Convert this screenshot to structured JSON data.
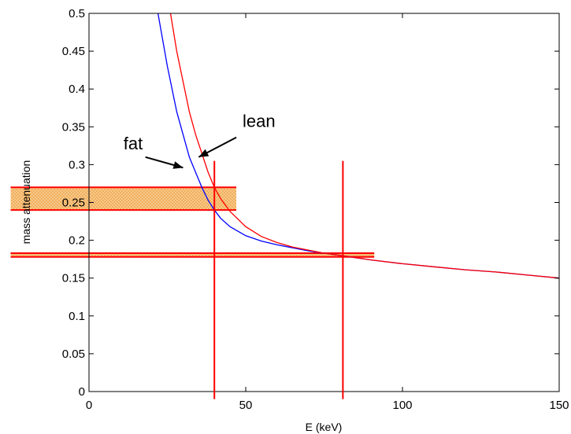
{
  "chart_data": {
    "type": "line",
    "title": "",
    "xlabel": "E (keV)",
    "ylabel": "mass attenuation",
    "xlim": [
      0,
      150
    ],
    "ylim": [
      0,
      0.5
    ],
    "grid": false,
    "x_ticks": [
      0,
      50,
      100,
      150
    ],
    "y_ticks": [
      0,
      0.05,
      0.1,
      0.15,
      0.2,
      0.25,
      0.3,
      0.35,
      0.4,
      0.45,
      0.5
    ],
    "series": [
      {
        "color": "#0000ff",
        "x": [
          22,
          25,
          28,
          30,
          32,
          34,
          36,
          38,
          40,
          42,
          45,
          50,
          55,
          60,
          65,
          70,
          75,
          80,
          85,
          90,
          100,
          110,
          120,
          130,
          140,
          150
        ],
        "values": [
          0.5,
          0.43,
          0.37,
          0.34,
          0.31,
          0.29,
          0.27,
          0.253,
          0.24,
          0.229,
          0.218,
          0.206,
          0.199,
          0.194,
          0.19,
          0.186,
          0.183,
          0.18,
          0.177,
          0.174,
          0.169,
          0.165,
          0.161,
          0.158,
          0.154,
          0.15
        ]
      },
      {
        "color": "#ff0000",
        "x": [
          26,
          28,
          30,
          32,
          34,
          36,
          38,
          40,
          42,
          45,
          50,
          55,
          60,
          65,
          70,
          75,
          80,
          85,
          90,
          100,
          110,
          120,
          130,
          140,
          150
        ],
        "values": [
          0.5,
          0.45,
          0.41,
          0.37,
          0.34,
          0.315,
          0.29,
          0.27,
          0.255,
          0.238,
          0.218,
          0.205,
          0.197,
          0.191,
          0.187,
          0.183,
          0.18,
          0.177,
          0.174,
          0.169,
          0.165,
          0.161,
          0.158,
          0.154,
          0.15
        ]
      }
    ],
    "vertical_markers": [
      {
        "x": 40,
        "y_range": [
          -0.01,
          0.305
        ],
        "color": "#ff0000"
      },
      {
        "x": 81,
        "y_range": [
          -0.01,
          0.305
        ],
        "color": "#ff0000"
      }
    ],
    "bands": [
      {
        "x_range": [
          -25,
          47
        ],
        "y_range": [
          0.24,
          0.27
        ],
        "fill": "#f5b04a",
        "edge": "#ff0000"
      },
      {
        "x_range": [
          -25,
          91
        ],
        "y_range": [
          0.178,
          0.183
        ],
        "fill": "#f5b04a",
        "edge": "#ff0000"
      }
    ],
    "annotations": [
      {
        "text": "fat",
        "label_at": [
          11,
          0.32
        ],
        "arrow_from": [
          18,
          0.31
        ],
        "arrow_to": [
          30,
          0.296
        ]
      },
      {
        "text": "lean",
        "label_at": [
          49,
          0.35
        ],
        "arrow_from": [
          47,
          0.336
        ],
        "arrow_to": [
          35,
          0.31
        ]
      }
    ]
  }
}
